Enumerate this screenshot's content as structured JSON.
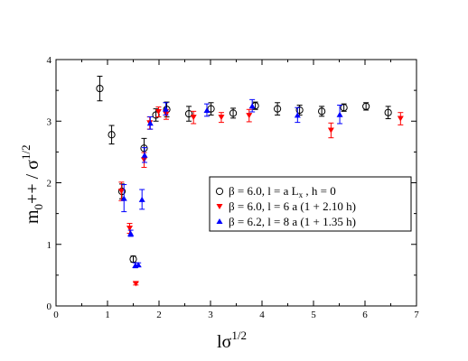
{
  "chart_data": {
    "type": "scatter",
    "title": "",
    "xlabel": "lσ",
    "xlabel_sup": "1/2",
    "ylabel": "m",
    "ylabel_sub": "0",
    "ylabel_mid": "++ / σ",
    "ylabel_sup": "1/2",
    "xlim": [
      0,
      7
    ],
    "ylim": [
      0,
      4
    ],
    "xticks": [
      "0",
      "1",
      "2",
      "3",
      "4",
      "5",
      "6",
      "7"
    ],
    "yticks": [
      "0",
      "1",
      "2",
      "3",
      "4"
    ],
    "grid": false,
    "legend_position": "center-right",
    "series": [
      {
        "name": "β = 6.0, l = a L",
        "name_sub": "x",
        "name_tail": " ,   h = 0",
        "marker": "circle-open",
        "color": "#000000",
        "points": [
          {
            "x": 0.85,
            "y": 3.53,
            "err": 0.2
          },
          {
            "x": 1.08,
            "y": 2.78,
            "err": 0.15
          },
          {
            "x": 1.28,
            "y": 1.86,
            "err": 0.12
          },
          {
            "x": 1.5,
            "y": 0.76,
            "err": 0.05
          },
          {
            "x": 1.71,
            "y": 2.56,
            "err": 0.16
          },
          {
            "x": 1.94,
            "y": 3.1,
            "err": 0.1
          },
          {
            "x": 2.15,
            "y": 3.19,
            "err": 0.12
          },
          {
            "x": 2.58,
            "y": 3.12,
            "err": 0.12
          },
          {
            "x": 3.01,
            "y": 3.2,
            "err": 0.1
          },
          {
            "x": 3.44,
            "y": 3.13,
            "err": 0.08
          },
          {
            "x": 3.87,
            "y": 3.25,
            "err": 0.06
          },
          {
            "x": 4.3,
            "y": 3.2,
            "err": 0.1
          },
          {
            "x": 4.73,
            "y": 3.18,
            "err": 0.08
          },
          {
            "x": 5.16,
            "y": 3.16,
            "err": 0.08
          },
          {
            "x": 5.59,
            "y": 3.22,
            "err": 0.06
          },
          {
            "x": 6.02,
            "y": 3.24,
            "err": 0.06
          },
          {
            "x": 6.45,
            "y": 3.14,
            "err": 0.1
          }
        ]
      },
      {
        "name": "β = 6.0, l = 6 a (1 + 2.10 h)",
        "marker": "triangle-down",
        "color": "#ff0000",
        "points": [
          {
            "x": 1.27,
            "y": 1.86,
            "err": 0.15
          },
          {
            "x": 1.43,
            "y": 1.26,
            "err": 0.08
          },
          {
            "x": 1.55,
            "y": 0.36,
            "err": 0.02
          },
          {
            "x": 1.71,
            "y": 2.37,
            "err": 0.12
          },
          {
            "x": 1.82,
            "y": 2.97,
            "err": 0.1
          },
          {
            "x": 1.99,
            "y": 3.15,
            "err": 0.08
          },
          {
            "x": 2.14,
            "y": 3.11,
            "err": 0.08
          },
          {
            "x": 2.67,
            "y": 3.06,
            "err": 0.1
          },
          {
            "x": 3.21,
            "y": 3.06,
            "err": 0.08
          },
          {
            "x": 3.75,
            "y": 3.09,
            "err": 0.1
          },
          {
            "x": 5.34,
            "y": 2.85,
            "err": 0.12
          },
          {
            "x": 6.69,
            "y": 3.04,
            "err": 0.1
          }
        ]
      },
      {
        "name": "β = 6.2, l = 8 a (1 + 1.35 h)",
        "marker": "triangle-up",
        "color": "#0000ff",
        "points": [
          {
            "x": 1.32,
            "y": 1.75,
            "err": 0.22
          },
          {
            "x": 1.45,
            "y": 1.18,
            "err": 0.05
          },
          {
            "x": 1.54,
            "y": 0.66,
            "err": 0.04
          },
          {
            "x": 1.6,
            "y": 0.67,
            "err": 0.03
          },
          {
            "x": 1.67,
            "y": 1.73,
            "err": 0.16
          },
          {
            "x": 1.72,
            "y": 2.45,
            "err": 0.12
          },
          {
            "x": 1.83,
            "y": 2.97,
            "err": 0.1
          },
          {
            "x": 2.13,
            "y": 3.2,
            "err": 0.1
          },
          {
            "x": 2.93,
            "y": 3.18,
            "err": 0.1
          },
          {
            "x": 3.81,
            "y": 3.25,
            "err": 0.1
          },
          {
            "x": 4.69,
            "y": 3.1,
            "err": 0.12
          },
          {
            "x": 5.51,
            "y": 3.11,
            "err": 0.15
          }
        ]
      }
    ]
  }
}
